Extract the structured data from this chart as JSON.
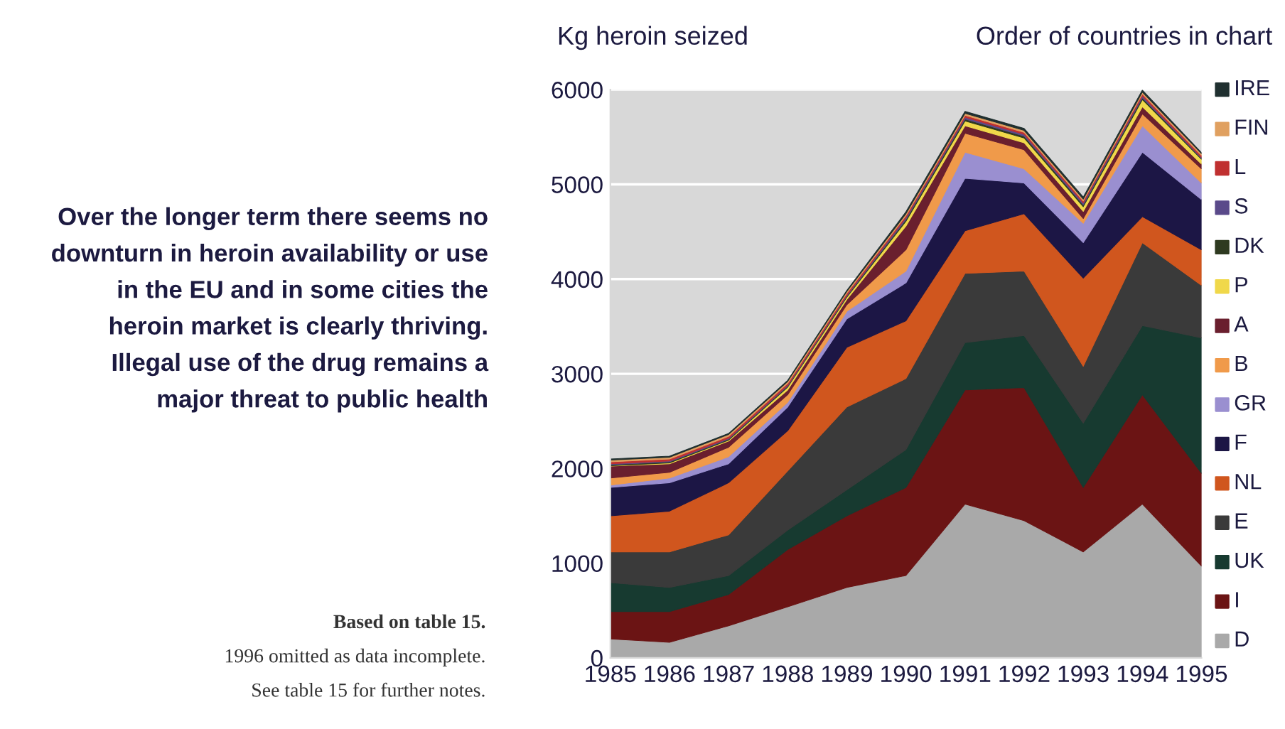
{
  "chart_data": {
    "type": "area",
    "stacked": true,
    "title": "Over the longer term there seems no\ndownturn in heroin availability or use\nin the EU and in some cities the\nheroin market is clearly thriving.\nIllegal use of the drug remains a\nmajor threat to public health",
    "ylabel": "Kg heroin seized",
    "legend_title": "Order of countries in chart",
    "annotations": [
      "Based on table 15.",
      "1996 omitted as data incomplete.",
      "See table 15 for further notes."
    ],
    "x": [
      1985,
      1986,
      1987,
      1988,
      1989,
      1990,
      1991,
      1992,
      1993,
      1994,
      1995
    ],
    "xlim": [
      1985,
      1995
    ],
    "xticks": [
      1985,
      1986,
      1987,
      1988,
      1989,
      1990,
      1991,
      1992,
      1993,
      1994,
      1995
    ],
    "ylim": [
      0,
      6000
    ],
    "yticks": [
      0,
      1000,
      2000,
      3000,
      4000,
      5000,
      6000
    ],
    "grid": "y",
    "legend": "right",
    "series": [
      {
        "name": "D",
        "color": "#a9a9a9",
        "values": [
          200,
          165,
          340,
          540,
          745,
          870,
          1625,
          1450,
          1120,
          1625,
          970
        ]
      },
      {
        "name": "I",
        "color": "#6b1414",
        "values": [
          290,
          325,
          330,
          605,
          755,
          930,
          1205,
          1405,
          680,
          1155,
          980
        ]
      },
      {
        "name": "UK",
        "color": "#173a30",
        "values": [
          305,
          255,
          200,
          205,
          275,
          400,
          500,
          550,
          680,
          730,
          1430
        ]
      },
      {
        "name": "E",
        "color": "#3a3a3a",
        "values": [
          325,
          375,
          430,
          625,
          875,
          750,
          730,
          680,
          600,
          875,
          555
        ]
      },
      {
        "name": "NL",
        "color": "#d0561e",
        "values": [
          380,
          430,
          550,
          425,
          630,
          610,
          450,
          605,
          930,
          275,
          375
        ]
      },
      {
        "name": "F",
        "color": "#1c1645",
        "values": [
          300,
          300,
          200,
          250,
          300,
          400,
          555,
          325,
          375,
          680,
          530
        ]
      },
      {
        "name": "GR",
        "color": "#9a8fd0",
        "values": [
          25,
          50,
          75,
          50,
          80,
          125,
          275,
          150,
          205,
          280,
          175
        ]
      },
      {
        "name": "B",
        "color": "#f09a4a",
        "values": [
          75,
          60,
          100,
          80,
          70,
          225,
          200,
          200,
          50,
          125,
          150
        ]
      },
      {
        "name": "A",
        "color": "#6a1f2e",
        "values": [
          125,
          90,
          65,
          50,
          55,
          250,
          80,
          75,
          75,
          75,
          50
        ]
      },
      {
        "name": "P",
        "color": "#f0d84a",
        "values": [
          5,
          10,
          10,
          30,
          25,
          50,
          50,
          50,
          50,
          75,
          50
        ]
      },
      {
        "name": "DK",
        "color": "#2e3a20",
        "values": [
          10,
          10,
          10,
          10,
          10,
          20,
          20,
          20,
          20,
          20,
          10
        ]
      },
      {
        "name": "S",
        "color": "#5a4a8a",
        "values": [
          10,
          10,
          10,
          10,
          10,
          20,
          20,
          20,
          20,
          20,
          10
        ]
      },
      {
        "name": "L",
        "color": "#c03030",
        "values": [
          20,
          20,
          20,
          20,
          20,
          20,
          20,
          20,
          20,
          20,
          20
        ]
      },
      {
        "name": "FIN",
        "color": "#e0a060",
        "values": [
          20,
          20,
          20,
          20,
          20,
          20,
          20,
          20,
          20,
          20,
          20
        ]
      },
      {
        "name": "IRE",
        "color": "#203030",
        "values": [
          10,
          10,
          10,
          10,
          10,
          20,
          20,
          20,
          20,
          20,
          10
        ]
      }
    ]
  }
}
